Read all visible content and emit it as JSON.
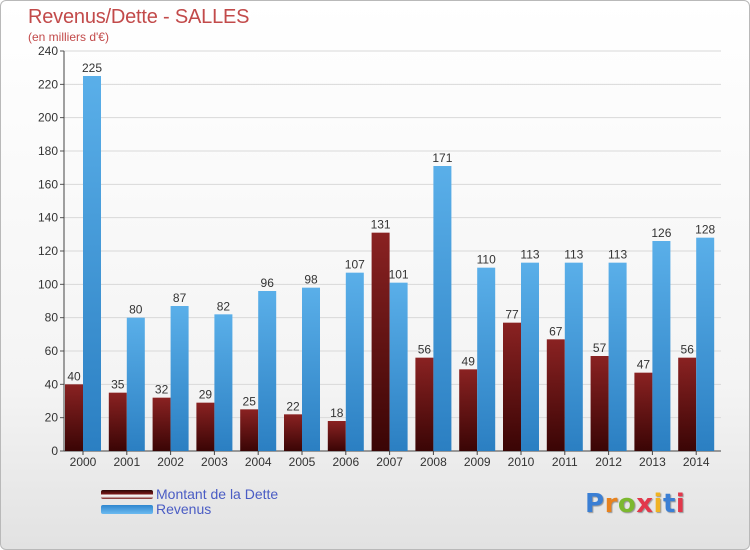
{
  "header": {
    "title": "Revenus/Dette - SALLES",
    "subtitle": "(en milliers d'€)"
  },
  "logo": {
    "text": "Proxiti",
    "letter_colors": [
      "#3b7fd4",
      "#e8821e",
      "#7cb82f",
      "#e2384b",
      "#f0b323",
      "#3b7fd4",
      "#e2384b"
    ]
  },
  "colors": {
    "dette": "#7a1a1a",
    "revenus": "#4ea4e6",
    "title": "#c24a4a",
    "legend_text": "#4a5cc4"
  },
  "chart_data": {
    "type": "bar",
    "title": "Revenus/Dette - SALLES",
    "subtitle": "(en milliers d'€)",
    "categories": [
      "2000",
      "2001",
      "2002",
      "2003",
      "2004",
      "2005",
      "2006",
      "2007",
      "2008",
      "2009",
      "2010",
      "2011",
      "2012",
      "2013",
      "2014"
    ],
    "series": [
      {
        "name": "Montant de la Dette",
        "values": [
          40,
          35,
          32,
          29,
          25,
          22,
          18,
          131,
          56,
          49,
          77,
          67,
          57,
          47,
          56
        ]
      },
      {
        "name": "Revenus",
        "values": [
          225,
          80,
          87,
          82,
          96,
          98,
          107,
          101,
          171,
          110,
          113,
          113,
          113,
          126,
          128
        ]
      }
    ],
    "ylim": [
      0,
      240
    ],
    "yticks": [
      0,
      20,
      40,
      60,
      80,
      100,
      120,
      140,
      160,
      180,
      200,
      220,
      240
    ],
    "grid": true,
    "legend_position": "bottom-left"
  }
}
